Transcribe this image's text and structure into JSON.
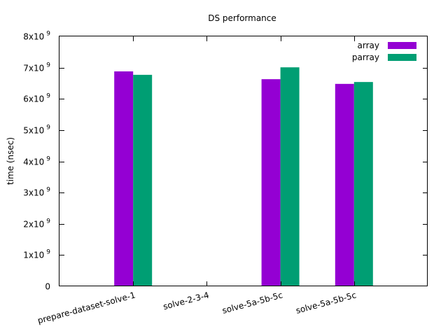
{
  "chart_data": {
    "type": "bar",
    "title": "DS performance",
    "xlabel": "",
    "ylabel": "time (nsec)",
    "ylim": [
      0,
      8000000000
    ],
    "yticks": [
      {
        "value": 0,
        "mantissa": "0",
        "exp": ""
      },
      {
        "value": 1000000000,
        "mantissa": "1x10",
        "exp": "9"
      },
      {
        "value": 2000000000,
        "mantissa": "2x10",
        "exp": "9"
      },
      {
        "value": 3000000000,
        "mantissa": "3x10",
        "exp": "9"
      },
      {
        "value": 4000000000,
        "mantissa": "4x10",
        "exp": "9"
      },
      {
        "value": 5000000000,
        "mantissa": "5x10",
        "exp": "9"
      },
      {
        "value": 6000000000,
        "mantissa": "6x10",
        "exp": "9"
      },
      {
        "value": 7000000000,
        "mantissa": "7x10",
        "exp": "9"
      },
      {
        "value": 8000000000,
        "mantissa": "8x10",
        "exp": "9"
      }
    ],
    "categories": [
      "prepare-dataset-solve-1",
      "solve-2-3-4",
      "solve-5a-5b-5c",
      "solve-5a-5b-5c"
    ],
    "series": [
      {
        "name": "array",
        "color": "#9400d3",
        "values": [
          6880000000,
          null,
          6630000000,
          6480000000
        ]
      },
      {
        "name": "parray",
        "color": "#009e73",
        "values": [
          6770000000,
          null,
          7010000000,
          6540000000
        ]
      }
    ],
    "legend": "top-right",
    "grid": false
  }
}
